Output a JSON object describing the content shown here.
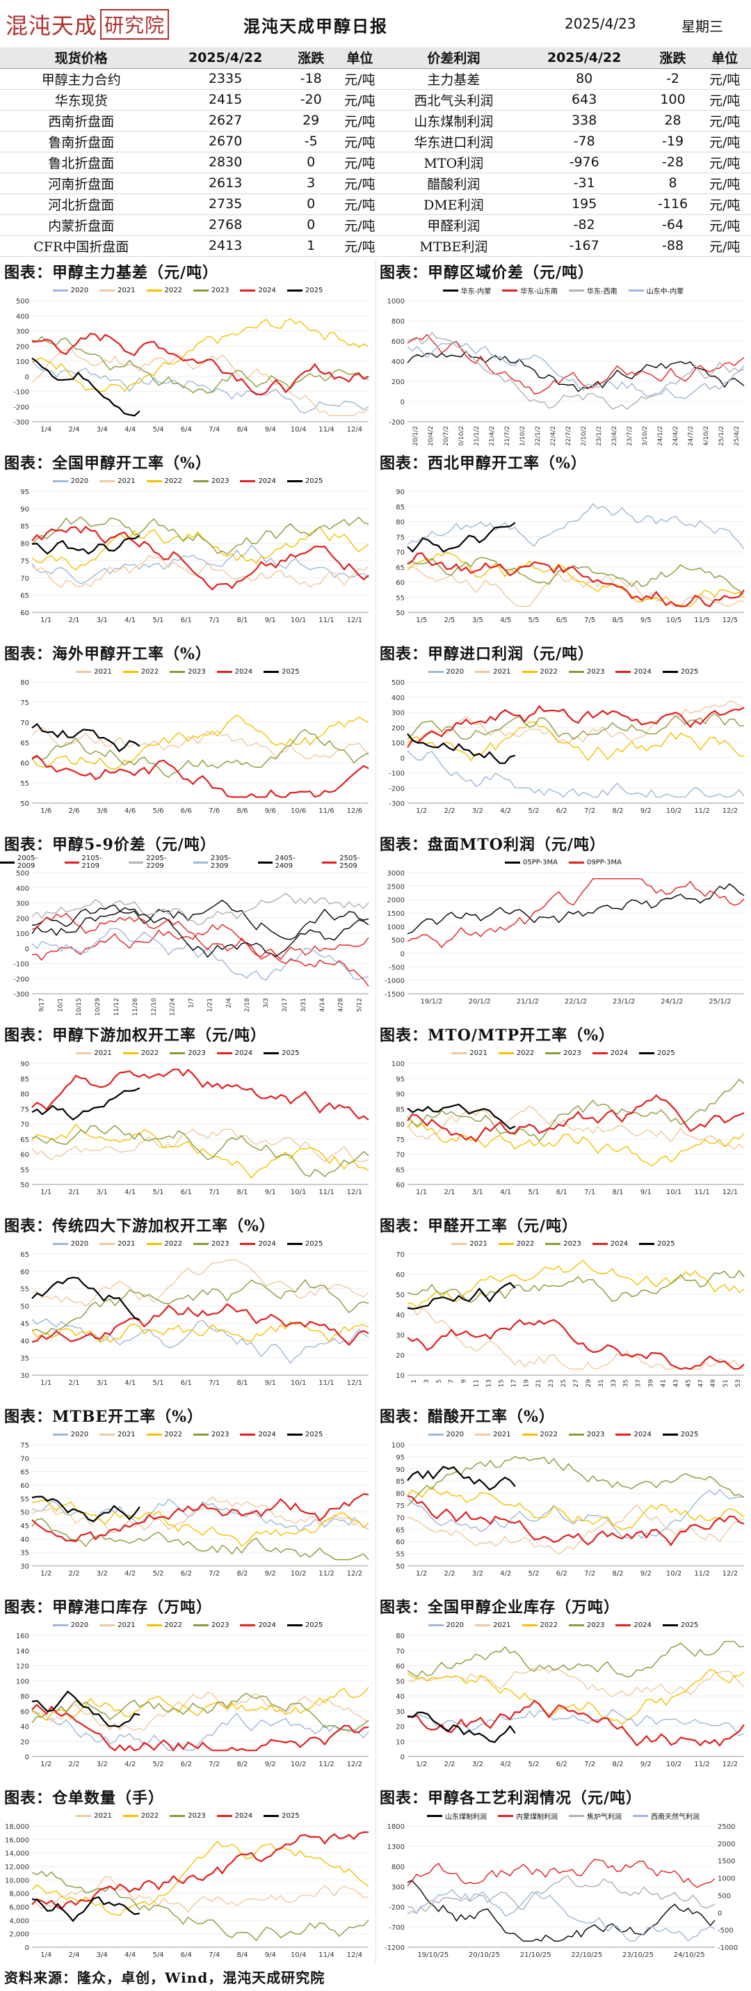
{
  "header": {
    "logo_text": "混沌天成",
    "logo_box": "研究院",
    "title": "混沌天成甲醇日报",
    "date": "2025/4/23",
    "weekday": "星期三"
  },
  "table": {
    "headers": [
      "现货价格",
      "2025/4/22",
      "涨跌",
      "单位",
      "价差利润",
      "2025/4/22",
      "涨跌",
      "单位"
    ],
    "rows": [
      [
        "甲醇主力合约",
        "2335",
        "-18",
        "元/吨",
        "主力基差",
        "80",
        "-2",
        "元/吨"
      ],
      [
        "华东现货",
        "2415",
        "-20",
        "元/吨",
        "西北气头利润",
        "643",
        "100",
        "元/吨"
      ],
      [
        "西南折盘面",
        "2627",
        "29",
        "元/吨",
        "山东煤制利润",
        "338",
        "28",
        "元/吨"
      ],
      [
        "鲁南折盘面",
        "2670",
        "-5",
        "元/吨",
        "华东进口利润",
        "-78",
        "-19",
        "元/吨"
      ],
      [
        "鲁北折盘面",
        "2830",
        "0",
        "元/吨",
        "MTO利润",
        "-976",
        "-28",
        "元/吨"
      ],
      [
        "河南折盘面",
        "2613",
        "3",
        "元/吨",
        "醋酸利润",
        "-31",
        "8",
        "元/吨"
      ],
      [
        "河北折盘面",
        "2735",
        "0",
        "元/吨",
        "DME利润",
        "195",
        "-116",
        "元/吨"
      ],
      [
        "内蒙折盘面",
        "2768",
        "0",
        "元/吨",
        "甲醛利润",
        "-82",
        "-64",
        "元/吨"
      ],
      [
        "CFR中国折盘面",
        "2413",
        "1",
        "元/吨",
        "MTBE利润",
        "-167",
        "-88",
        "元/吨"
      ]
    ]
  },
  "colors": {
    "2020": "#9db8d8",
    "2021": "#f0c9a0",
    "2022": "#f2c200",
    "2023": "#8a9a3a",
    "2024": "#e02020",
    "2025": "#000000",
    "grey": "#b0b0b0"
  },
  "charts": [
    {
      "title": "图表：甲醇主力基差（元/吨）",
      "chart_data": {
        "type": "line",
        "series": [
          {
            "name": "2020"
          },
          {
            "name": "2021"
          },
          {
            "name": "2022"
          },
          {
            "name": "2023"
          },
          {
            "name": "2024"
          },
          {
            "name": "2025"
          }
        ],
        "yticks": [
          "500",
          "400",
          "300",
          "200",
          "100",
          "0",
          "-100",
          "-200",
          "-300"
        ],
        "xticks": [
          "1/4",
          "2/4",
          "3/4",
          "4/4",
          "5/4",
          "6/4",
          "7/4",
          "8/4",
          "9/4",
          "10/4",
          "11/4",
          "12/4"
        ],
        "ylim": [
          -300,
          500
        ]
      }
    },
    {
      "title": "图表：甲醇区域价差（元/吨）",
      "chart_data": {
        "type": "line",
        "series": [
          {
            "name": "华东-内蒙"
          },
          {
            "name": "华东-山东南"
          },
          {
            "name": "华东-西南"
          },
          {
            "name": "山东中-内蒙"
          }
        ],
        "yticks": [
          "1000",
          "800",
          "600",
          "400",
          "200",
          "0",
          "-200"
        ],
        "xticks": [
          "20/1/2",
          "20/4/2",
          "20/7/2",
          "20/10/2",
          "21/1/2",
          "21/4/2",
          "21/7/2",
          "21/10/2",
          "22/1/2",
          "22/4/2",
          "22/7/2",
          "22/10/2",
          "23/1/2",
          "23/4/2",
          "23/7/2",
          "23/10/2",
          "24/1/2",
          "24/4/2",
          "24/7/2",
          "24/10/2",
          "25/1/2",
          "25/4/2"
        ],
        "ylim": [
          -200,
          1000
        ]
      }
    },
    {
      "title": "图表：全国甲醇开工率（%）",
      "chart_data": {
        "type": "line",
        "series": [
          {
            "name": "2020"
          },
          {
            "name": "2021"
          },
          {
            "name": "2022"
          },
          {
            "name": "2023"
          },
          {
            "name": "2024"
          },
          {
            "name": "2025"
          }
        ],
        "yticks": [
          "95",
          "90",
          "85",
          "80",
          "75",
          "70",
          "65",
          "60"
        ],
        "xticks": [
          "1/1",
          "2/1",
          "3/1",
          "4/1",
          "5/1",
          "6/1",
          "7/1",
          "8/1",
          "9/1",
          "10/1",
          "11/1",
          "12/1"
        ],
        "ylim": [
          60,
          95
        ]
      }
    },
    {
      "title": "图表：西北甲醇开工率（%）",
      "chart_data": {
        "type": "line",
        "series": [],
        "yticks": [
          "90",
          "85",
          "80",
          "75",
          "70",
          "65",
          "60",
          "55",
          "50"
        ],
        "xticks": [
          "1/5",
          "2/5",
          "3/5",
          "4/5",
          "5/5",
          "6/5",
          "7/5",
          "8/5",
          "9/5",
          "10/5",
          "11/5",
          "12/5"
        ],
        "ylim": [
          50,
          90
        ]
      }
    },
    {
      "title": "图表：海外甲醇开工率（%）",
      "chart_data": {
        "type": "line",
        "series": [
          {
            "name": "2021"
          },
          {
            "name": "2022"
          },
          {
            "name": "2023"
          },
          {
            "name": "2024"
          },
          {
            "name": "2025"
          }
        ],
        "yticks": [
          "80",
          "75",
          "70",
          "65",
          "60",
          "55",
          "50"
        ],
        "xticks": [
          "1/6",
          "2/6",
          "3/6",
          "4/6",
          "5/6",
          "6/6",
          "7/6",
          "8/6",
          "9/6",
          "10/6",
          "11/6",
          "12/6"
        ],
        "ylim": [
          50,
          80
        ]
      }
    },
    {
      "title": "图表：甲醇进口利润（元/吨）",
      "chart_data": {
        "type": "line",
        "series": [
          {
            "name": "2020"
          },
          {
            "name": "2021"
          },
          {
            "name": "2022"
          },
          {
            "name": "2023"
          },
          {
            "name": "2024"
          },
          {
            "name": "2025"
          }
        ],
        "yticks": [
          "500",
          "400",
          "300",
          "200",
          "100",
          "0",
          "-100",
          "-200",
          "-300"
        ],
        "xticks": [
          "1/2",
          "2/2",
          "3/2",
          "4/2",
          "5/2",
          "6/2",
          "7/2",
          "8/2",
          "9/2",
          "10/2",
          "11/2",
          "12/2"
        ],
        "ylim": [
          -300,
          500
        ]
      }
    },
    {
      "title": "图表：甲醇5-9价差（元/吨）",
      "chart_data": {
        "type": "line",
        "series": [
          {
            "name": "2005-2009"
          },
          {
            "name": "2105-2109"
          },
          {
            "name": "2205-2209"
          },
          {
            "name": "2305-2309"
          },
          {
            "name": "2405-2409"
          },
          {
            "name": "2505-2509"
          }
        ],
        "yticks": [
          "500",
          "400",
          "300",
          "200",
          "100",
          "0",
          "-100",
          "-200",
          "-300"
        ],
        "xticks": [
          "9/17",
          "10/1",
          "10/15",
          "10/29",
          "11/12",
          "11/26",
          "12/10",
          "12/24",
          "1/7",
          "1/21",
          "2/4",
          "2/18",
          "3/3",
          "3/17",
          "3/31",
          "4/14",
          "4/28",
          "5/12"
        ],
        "ylim": [
          -300,
          500
        ]
      }
    },
    {
      "title": "图表：盘面MTO利润（元/吨）",
      "chart_data": {
        "type": "line",
        "series": [
          {
            "name": "05PP-3MA"
          },
          {
            "name": "09PP-3MA"
          }
        ],
        "yticks": [
          "3000",
          "2500",
          "2000",
          "1500",
          "1000",
          "500",
          "0",
          "-500",
          "-1000",
          "-1500"
        ],
        "xticks": [
          "19/1/2",
          "20/1/2",
          "21/1/2",
          "22/1/2",
          "23/1/2",
          "24/1/2",
          "25/1/2"
        ],
        "ylim": [
          -1500,
          3000
        ]
      }
    },
    {
      "title": "图表：甲醇下游加权开工率（元/吨）",
      "chart_data": {
        "type": "line",
        "series": [
          {
            "name": "2021"
          },
          {
            "name": "2022"
          },
          {
            "name": "2023"
          },
          {
            "name": "2024"
          },
          {
            "name": "2025"
          }
        ],
        "yticks": [
          "90",
          "85",
          "80",
          "75",
          "70",
          "65",
          "60",
          "55",
          "50"
        ],
        "xticks": [
          "1/1",
          "2/1",
          "3/1",
          "4/1",
          "5/1",
          "6/1",
          "7/1",
          "8/1",
          "9/1",
          "10/1",
          "11/1",
          "12/1"
        ],
        "ylim": [
          50,
          90
        ]
      }
    },
    {
      "title": "图表：MTO/MTP开工率（%）",
      "chart_data": {
        "type": "line",
        "series": [
          {
            "name": "2021"
          },
          {
            "name": "2022"
          },
          {
            "name": "2023"
          },
          {
            "name": "2024"
          },
          {
            "name": "2025"
          }
        ],
        "yticks": [
          "100",
          "95",
          "90",
          "85",
          "80",
          "75",
          "70",
          "65",
          "60"
        ],
        "xticks": [
          "1/1",
          "2/1",
          "3/1",
          "4/1",
          "5/1",
          "6/1",
          "7/1",
          "8/1",
          "9/1",
          "10/1",
          "11/1",
          "12/1"
        ],
        "ylim": [
          60,
          100
        ]
      }
    },
    {
      "title": "图表：传统四大下游加权开工率（%）",
      "chart_data": {
        "type": "line",
        "series": [
          {
            "name": "2020"
          },
          {
            "name": "2021"
          },
          {
            "name": "2022"
          },
          {
            "name": "2023"
          },
          {
            "name": "2024"
          },
          {
            "name": "2025"
          }
        ],
        "yticks": [
          "65",
          "60",
          "55",
          "50",
          "45",
          "40",
          "35",
          "30"
        ],
        "xticks": [
          "1/1",
          "2/1",
          "3/1",
          "4/1",
          "5/1",
          "6/1",
          "7/1",
          "8/1",
          "9/1",
          "10/1",
          "11/1",
          "12/1"
        ],
        "ylim": [
          30,
          65
        ]
      }
    },
    {
      "title": "图表：甲醛开工率（元/吨）",
      "chart_data": {
        "type": "line",
        "series": [
          {
            "name": "2021"
          },
          {
            "name": "2022"
          },
          {
            "name": "2023"
          },
          {
            "name": "2024"
          },
          {
            "name": "2025"
          }
        ],
        "yticks": [
          "70",
          "60",
          "50",
          "40",
          "30",
          "20",
          "10"
        ],
        "xticks": [
          "1",
          "3",
          "5",
          "7",
          "9",
          "11",
          "13",
          "15",
          "17",
          "19",
          "21",
          "23",
          "25",
          "27",
          "29",
          "31",
          "33",
          "35",
          "37",
          "39",
          "41",
          "43",
          "45",
          "47",
          "49",
          "51",
          "53"
        ],
        "ylim": [
          10,
          70
        ]
      }
    },
    {
      "title": "图表：MTBE开工率（%）",
      "chart_data": {
        "type": "line",
        "series": [
          {
            "name": "2020"
          },
          {
            "name": "2021"
          },
          {
            "name": "2022"
          },
          {
            "name": "2023"
          },
          {
            "name": "2024"
          },
          {
            "name": "2025"
          }
        ],
        "yticks": [
          "75",
          "70",
          "65",
          "60",
          "55",
          "50",
          "45",
          "40",
          "35",
          "30"
        ],
        "xticks": [
          "1/2",
          "2/2",
          "3/2",
          "4/2",
          "5/2",
          "6/2",
          "7/2",
          "8/2",
          "9/2",
          "10/2",
          "11/2",
          "12/2"
        ],
        "ylim": [
          30,
          75
        ]
      }
    },
    {
      "title": "图表：醋酸开工率（%）",
      "chart_data": {
        "type": "line",
        "series": [
          {
            "name": "2020"
          },
          {
            "name": "2021"
          },
          {
            "name": "2022"
          },
          {
            "name": "2023"
          },
          {
            "name": "2024"
          },
          {
            "name": "2025"
          }
        ],
        "yticks": [
          "100",
          "95",
          "90",
          "85",
          "80",
          "75",
          "70",
          "65",
          "60",
          "55",
          "50"
        ],
        "xticks": [
          "1/2",
          "2/2",
          "3/2",
          "4/2",
          "5/2",
          "6/2",
          "7/2",
          "8/2",
          "9/2",
          "10/2",
          "11/2",
          "12/2"
        ],
        "ylim": [
          50,
          100
        ]
      }
    },
    {
      "title": "图表：甲醇港口库存（万吨）",
      "chart_data": {
        "type": "line",
        "series": [
          {
            "name": "2020"
          },
          {
            "name": "2021"
          },
          {
            "name": "2022"
          },
          {
            "name": "2023"
          },
          {
            "name": "2024"
          },
          {
            "name": "2025"
          }
        ],
        "yticks": [
          "160",
          "140",
          "120",
          "100",
          "80",
          "60",
          "40",
          "20",
          "0"
        ],
        "xticks": [
          "1/2",
          "2/2",
          "3/2",
          "4/2",
          "5/2",
          "6/2",
          "7/2",
          "8/2",
          "9/2",
          "10/2",
          "11/2",
          "12/2"
        ],
        "ylim": [
          0,
          160
        ]
      }
    },
    {
      "title": "图表：全国甲醇企业库存（万吨）",
      "chart_data": {
        "type": "line",
        "series": [
          {
            "name": "2020"
          },
          {
            "name": "2021"
          },
          {
            "name": "2022"
          },
          {
            "name": "2023"
          },
          {
            "name": "2024"
          },
          {
            "name": "2025"
          }
        ],
        "yticks": [
          "80",
          "70",
          "60",
          "50",
          "40",
          "30",
          "20",
          "10",
          "0"
        ],
        "xticks": [
          "1/2",
          "2/2",
          "3/2",
          "4/2",
          "5/2",
          "6/2",
          "7/2",
          "8/2",
          "9/2",
          "10/2",
          "11/2",
          "12/2"
        ],
        "ylim": [
          0,
          80
        ]
      }
    },
    {
      "title": "图表：仓单数量（手）",
      "chart_data": {
        "type": "line",
        "series": [
          {
            "name": "2021"
          },
          {
            "name": "2022"
          },
          {
            "name": "2023"
          },
          {
            "name": "2024"
          },
          {
            "name": "2025"
          }
        ],
        "yticks": [
          "18,000",
          "16,000",
          "14,000",
          "12,000",
          "10,000",
          "8,000",
          "6,000",
          "4,000",
          "2,000",
          "0"
        ],
        "xticks": [
          "1/4",
          "2/4",
          "3/4",
          "4/4",
          "5/4",
          "6/4",
          "7/4",
          "8/4",
          "9/4",
          "10/4",
          "11/4",
          "12/4"
        ],
        "ylim": [
          0,
          18000
        ]
      }
    },
    {
      "title": "图表：甲醇各工艺利润情况（元/吨）",
      "chart_data": {
        "type": "line",
        "series": [
          {
            "name": "山东煤制利润"
          },
          {
            "name": "内蒙煤制利润"
          },
          {
            "name": "焦炉气利润"
          },
          {
            "name": "西南天然气利润"
          }
        ],
        "yticks": [
          "1800",
          "1300",
          "800",
          "300",
          "-200",
          "-700",
          "-1200"
        ],
        "y2ticks": [
          "2500",
          "2000",
          "1500",
          "1000",
          "500",
          "0",
          "-500",
          "-1000"
        ],
        "xticks": [
          "19/10/25",
          "20/10/25",
          "21/10/25",
          "22/10/25",
          "23/10/25",
          "24/10/25"
        ],
        "ylim": [
          -1200,
          1800
        ]
      }
    }
  ],
  "footer": "资料来源：隆众，卓创，Wind，混沌天成研究院"
}
